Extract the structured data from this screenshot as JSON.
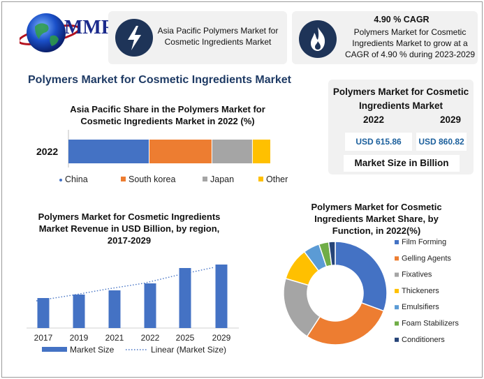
{
  "brand": {
    "logo_text": "MMR"
  },
  "header_cards": {
    "market_card_text": "Asia Pacific Polymers Market for Cosmetic Ingredients Market",
    "cagr_title": "4.90 % CAGR",
    "cagr_text": "Polymers Market for Cosmetic Ingredients Market to grow at a CAGR of 4.90 % during 2023-2029"
  },
  "main_title": "Polymers Market for Cosmetic Ingredients Market",
  "market_size": {
    "title": "Polymers Market for Cosmetic Ingredients Market",
    "year_start": "2022",
    "year_end": "2029",
    "value_start": "USD 615.86",
    "value_end": "USD 860.82",
    "unit_label": "Market Size in Billion"
  },
  "colors": {
    "china": "#4472c4",
    "south_korea": "#ed7d31",
    "japan": "#a5a5a5",
    "other": "#ffc000",
    "bar_blue": "#4472c4",
    "dark_navy": "#1e3458",
    "title_blue": "#1e3a64"
  },
  "icons": [
    "globe-icon",
    "lightning-icon",
    "flame-icon"
  ],
  "chart_data": [
    {
      "type": "bar",
      "orientation": "horizontal-stacked",
      "title": "Asia Pacific Share in the Polymers Market for Cosmetic Ingredients Market in 2022 (%)",
      "categories": [
        "2022"
      ],
      "series": [
        {
          "name": "China",
          "values": [
            40
          ]
        },
        {
          "name": "South korea",
          "values": [
            31
          ]
        },
        {
          "name": "Japan",
          "values": [
            20
          ]
        },
        {
          "name": "Other",
          "values": [
            9
          ]
        }
      ],
      "legend": "bottom"
    },
    {
      "type": "bar",
      "title": "Polymers Market for Cosmetic Ingredients Market Revenue in USD Billion, by region, 2017-2029",
      "categories": [
        "2017",
        "2019",
        "2021",
        "2022",
        "2025",
        "2029"
      ],
      "series": [
        {
          "name": "Market Size",
          "values": [
            43,
            48,
            54,
            64,
            86,
            91
          ]
        },
        {
          "name": "Linear (Market Size)",
          "values": [
            43,
            51,
            60,
            68,
            80,
            91
          ]
        }
      ],
      "ylim": [
        0,
        100
      ],
      "legend": "bottom"
    },
    {
      "type": "pie",
      "subtype": "donut",
      "title": "Polymers Market for Cosmetic Ingredients Market Share, by Function, in 2022(%)",
      "categories": [
        "Film Forming",
        "Gelling Agents",
        "Fixatives",
        "Thickeners",
        "Emulsifiers",
        "Foam Stabilizers",
        "Conditioners"
      ],
      "values": [
        30,
        28,
        20,
        10,
        5,
        3,
        2
      ],
      "legend": "right"
    }
  ]
}
